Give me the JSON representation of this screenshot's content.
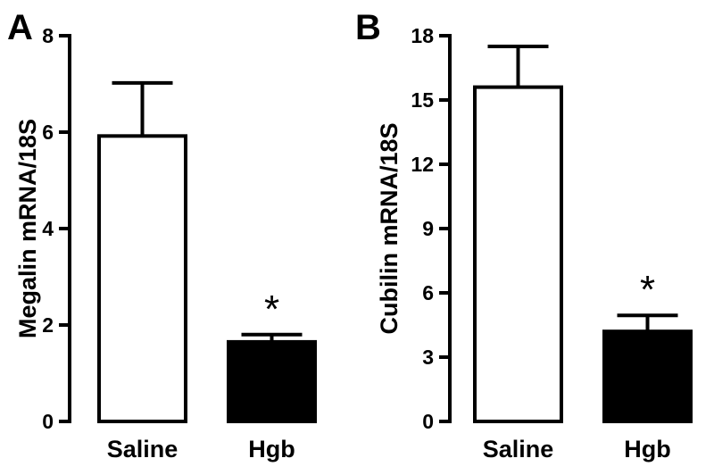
{
  "chart_data": [
    {
      "type": "bar",
      "panel_label": "A",
      "ylabel": "Megalin mRNA/18S",
      "categories": [
        "Saline",
        "Hgb"
      ],
      "values": [
        5.92,
        1.65
      ],
      "errors": [
        1.1,
        0.15
      ],
      "significance": [
        "",
        "*"
      ],
      "bar_fill": [
        "#ffffff",
        "#000000"
      ],
      "ylim": [
        0,
        8
      ],
      "yticks": [
        0,
        2,
        4,
        6,
        8
      ]
    },
    {
      "type": "bar",
      "panel_label": "B",
      "ylabel": "Cubilin mRNA/18S",
      "categories": [
        "Saline",
        "Hgb"
      ],
      "values": [
        15.6,
        4.2
      ],
      "errors": [
        1.9,
        0.75
      ],
      "significance": [
        "",
        "*"
      ],
      "bar_fill": [
        "#ffffff",
        "#000000"
      ],
      "ylim": [
        0,
        18
      ],
      "yticks": [
        0,
        3,
        6,
        9,
        12,
        15,
        18
      ]
    }
  ]
}
